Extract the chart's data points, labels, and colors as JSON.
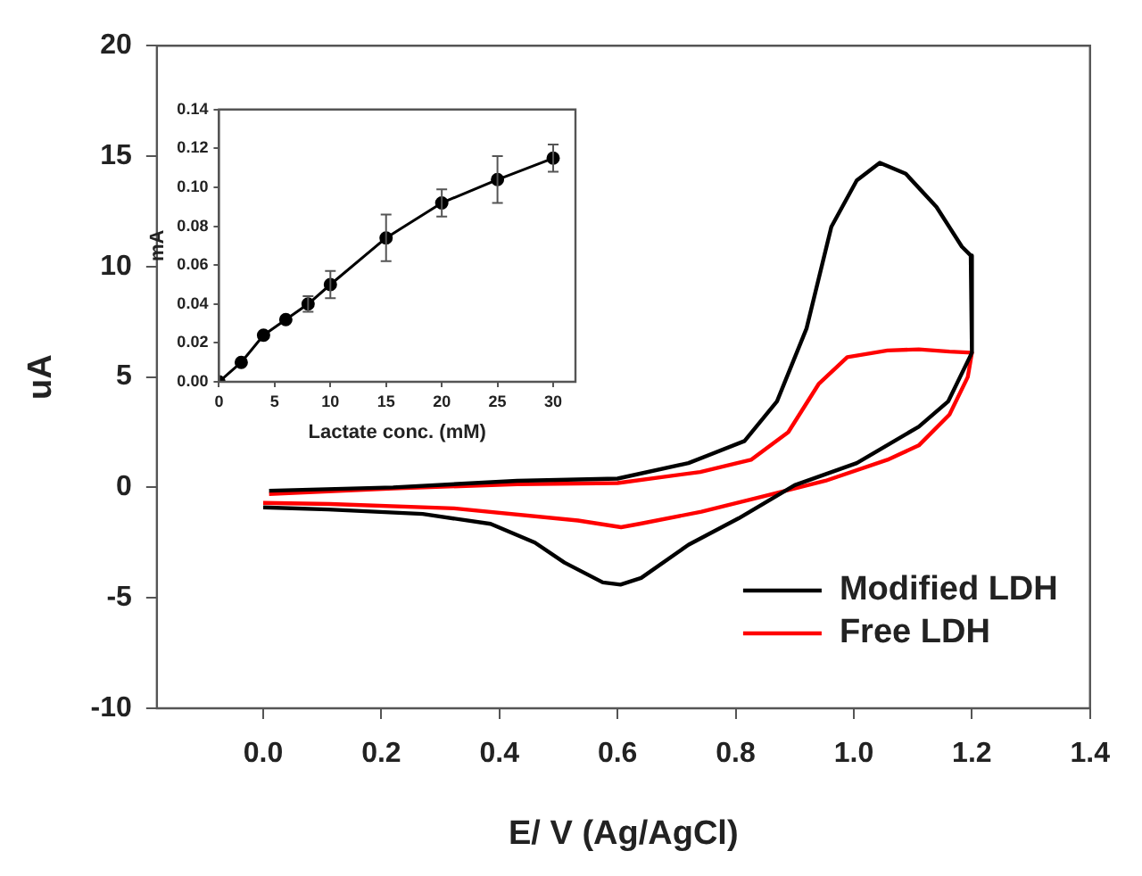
{
  "chart_data": [
    {
      "type": "line",
      "xlabel": "E/ V (Ag/AgCl)",
      "ylabel": "uA",
      "xlim": [
        -0.18,
        1.4
      ],
      "ylim": [
        -10,
        20
      ],
      "xticks": [
        {
          "value": 0,
          "label": "0.0"
        },
        {
          "value": 0.2,
          "label": "0.2"
        },
        {
          "value": 0.4,
          "label": "0.4"
        },
        {
          "value": 0.6,
          "label": "0.6"
        },
        {
          "value": 0.8,
          "label": "0.8"
        },
        {
          "value": 1.0,
          "label": "1.0"
        },
        {
          "value": 1.2,
          "label": "1.2"
        },
        {
          "value": 1.4,
          "label": "1.4"
        }
      ],
      "yticks": [
        -10,
        -5,
        0,
        5,
        10,
        15,
        20
      ],
      "legend": "bottom right",
      "marker": "none",
      "line_style": "solid",
      "series": [
        {
          "name": "Modified LDH",
          "color": "#000000",
          "x": [
            0.01,
            0.22,
            0.43,
            0.6,
            0.72,
            0.815,
            0.87,
            0.92,
            0.962,
            1.005,
            1.044,
            1.088,
            1.14,
            1.183,
            1.198,
            1.2,
            1.16,
            1.11,
            1.005,
            0.9,
            0.805,
            0.72,
            0.64,
            0.605,
            0.575,
            0.51,
            0.46,
            0.385,
            0.27,
            0.11,
            0.0
          ],
          "values": [
            -0.15,
            0,
            0.3,
            0.4,
            1.1,
            2.1,
            3.9,
            7.2,
            11.8,
            13.9,
            14.7,
            14.2,
            12.7,
            10.9,
            10.5,
            6.1,
            3.9,
            2.75,
            1.1,
            0.1,
            -1.4,
            -2.6,
            -4.1,
            -4.4,
            -4.3,
            -3.4,
            -2.5,
            -1.65,
            -1.2,
            -1.0,
            -0.9
          ]
        },
        {
          "name": "Free LDH",
          "color": "#ff0000",
          "x": [
            0.01,
            0.22,
            0.43,
            0.6,
            0.74,
            0.826,
            0.889,
            0.941,
            0.989,
            1.057,
            1.11,
            1.162,
            1.2,
            1.193,
            1.162,
            1.11,
            1.057,
            0.952,
            0.847,
            0.742,
            0.637,
            0.606,
            0.533,
            0.323,
            0.113,
            0.0
          ],
          "values": [
            -0.3,
            -0.05,
            0.15,
            0.2,
            0.7,
            1.25,
            2.5,
            4.7,
            5.9,
            6.2,
            6.25,
            6.15,
            6.1,
            5.0,
            3.3,
            1.9,
            1.25,
            0.3,
            -0.4,
            -1.1,
            -1.65,
            -1.8,
            -1.5,
            -0.95,
            -0.75,
            -0.7
          ]
        }
      ]
    },
    {
      "type": "line",
      "xlabel": "Lactate conc. (mM)",
      "ylabel": "mA",
      "xlim": [
        0,
        32
      ],
      "ylim": [
        0,
        0.14
      ],
      "xticks": [
        0,
        5,
        10,
        15,
        20,
        25,
        30
      ],
      "yticks": [
        {
          "value": 0,
          "label": "0.00"
        },
        {
          "value": 0.02,
          "label": "0.02"
        },
        {
          "value": 0.04,
          "label": "0.04"
        },
        {
          "value": 0.06,
          "label": "0.06"
        },
        {
          "value": 0.08,
          "label": "0.08"
        },
        {
          "value": 0.1,
          "label": "0.10"
        },
        {
          "value": 0.12,
          "label": "0.12"
        },
        {
          "value": 0.14,
          "label": "0.14"
        }
      ],
      "marker": "circle",
      "line_style": "solid",
      "series": [
        {
          "color": "#000000",
          "x": [
            0,
            2,
            4,
            6,
            8,
            10,
            15,
            20,
            25,
            30
          ],
          "values": [
            0,
            0.01,
            0.024,
            0.032,
            0.04,
            0.05,
            0.074,
            0.092,
            0.104,
            0.115
          ],
          "errors": [
            null,
            null,
            null,
            null,
            0.004,
            0.007,
            0.012,
            0.007,
            0.012,
            0.007
          ]
        }
      ]
    }
  ]
}
